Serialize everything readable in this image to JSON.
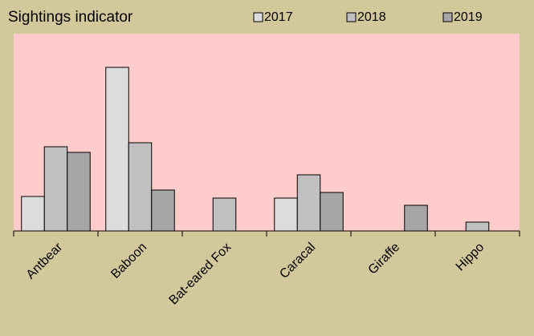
{
  "chart_data": {
    "type": "bar",
    "title": "Sightings indicator",
    "categories": [
      "Antbear",
      "Baboon",
      "Bat-eared Fox",
      "Caracal",
      "Giraffe",
      "Hippo"
    ],
    "series": [
      {
        "name": "2017",
        "color": "#dcdcdc",
        "values": [
          43,
          204,
          0,
          41,
          0,
          0
        ]
      },
      {
        "name": "2018",
        "color": "#c0c0c0",
        "values": [
          105,
          110,
          41,
          70,
          0,
          11
        ]
      },
      {
        "name": "2019",
        "color": "#a6a6a6",
        "values": [
          98,
          51,
          0,
          48,
          32,
          0
        ]
      }
    ],
    "ylim": [
      0,
      246
    ]
  }
}
